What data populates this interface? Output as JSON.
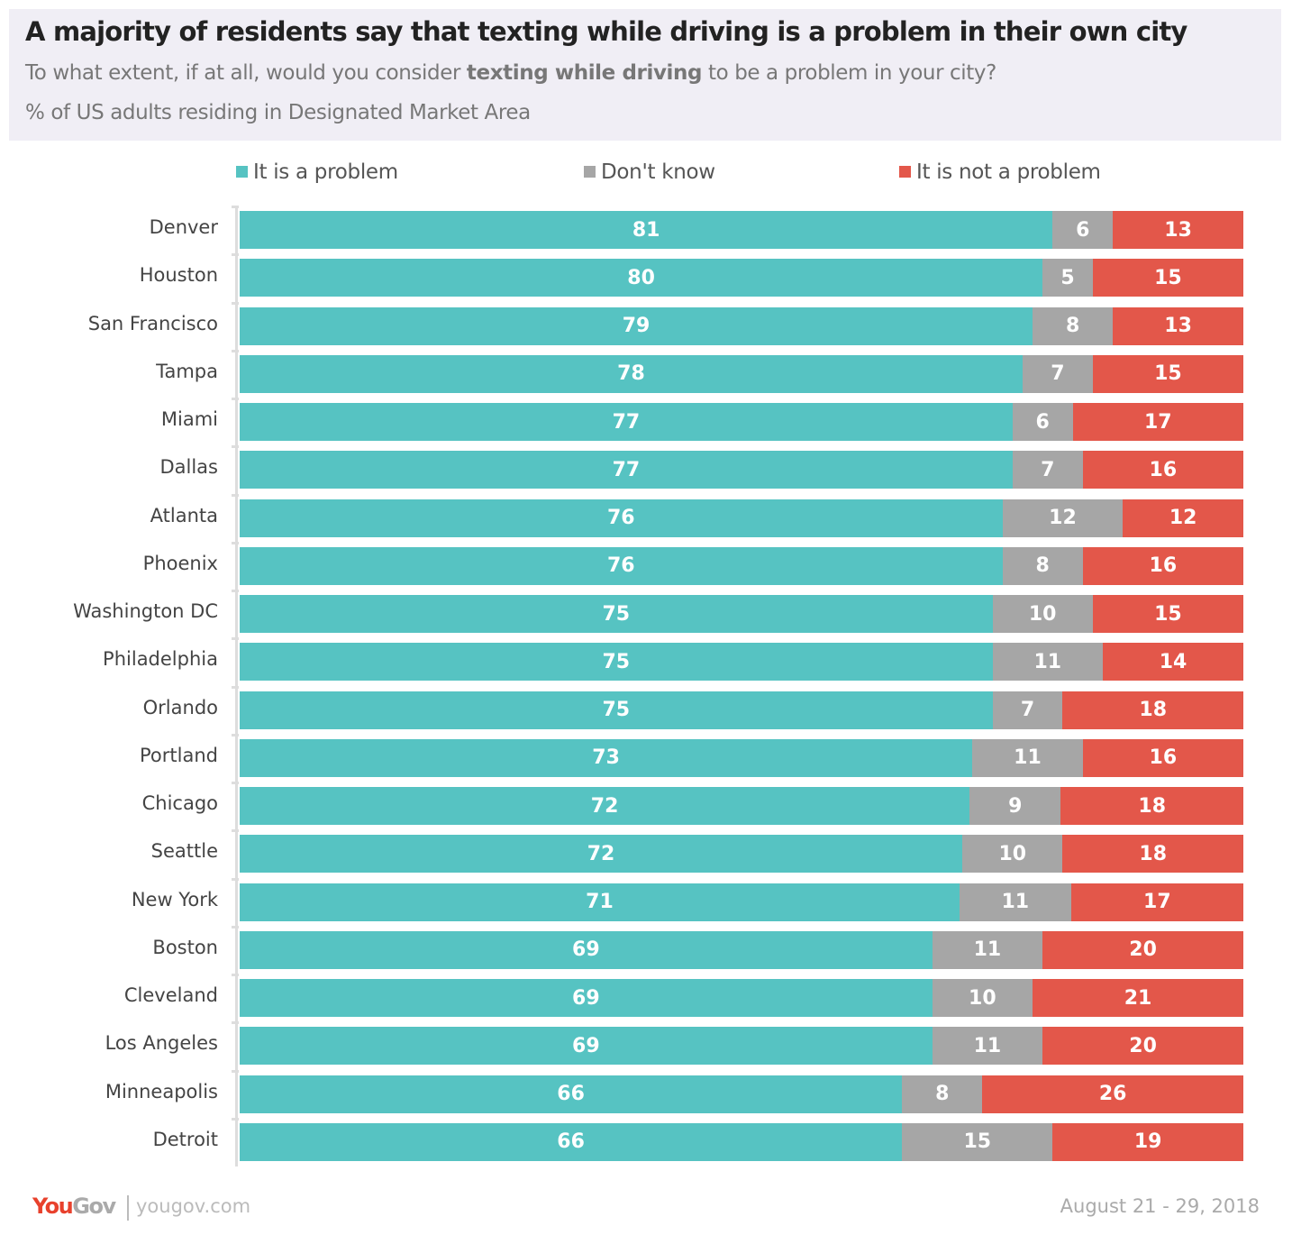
{
  "header": {
    "title": "A majority of residents say that texting while driving is a problem in their own city",
    "subtitle_pre": "To what extent, if at all, would you consider ",
    "subtitle_bold": "texting while driving",
    "subtitle_post": " to be a problem in your city?",
    "note": "% of US adults residing in Designated Market Area"
  },
  "footer": {
    "logo_you": "You",
    "logo_gov": "Gov",
    "url": "yougov.com",
    "date": "August 21 - 29, 2018"
  },
  "colors": {
    "problem": "#56c3c2",
    "dont_know": "#a6a6a6",
    "not_problem": "#e3574a"
  },
  "chart_data": {
    "type": "bar",
    "orientation": "horizontal",
    "stacked": true,
    "legend_placement": "top",
    "categories": [
      "Denver",
      "Houston",
      "San Francisco",
      "Tampa",
      "Miami",
      "Dallas",
      "Atlanta",
      "Phoenix",
      "Washington DC",
      "Philadelphia",
      "Orlando",
      "Portland",
      "Chicago",
      "Seattle",
      "New York",
      "Boston",
      "Cleveland",
      "Los Angeles",
      "Minneapolis",
      "Detroit"
    ],
    "series": [
      {
        "name": "It is a problem",
        "values": [
          81,
          80,
          79,
          78,
          77,
          77,
          76,
          76,
          75,
          75,
          75,
          73,
          72,
          72,
          71,
          69,
          69,
          69,
          66,
          66
        ]
      },
      {
        "name": "Don't know",
        "values": [
          6,
          5,
          8,
          7,
          6,
          7,
          12,
          8,
          10,
          11,
          7,
          11,
          9,
          10,
          11,
          11,
          10,
          11,
          8,
          15
        ]
      },
      {
        "name": "It is not a problem",
        "values": [
          13,
          15,
          13,
          15,
          17,
          16,
          12,
          16,
          15,
          14,
          18,
          16,
          18,
          18,
          17,
          20,
          21,
          20,
          26,
          19
        ]
      }
    ]
  }
}
